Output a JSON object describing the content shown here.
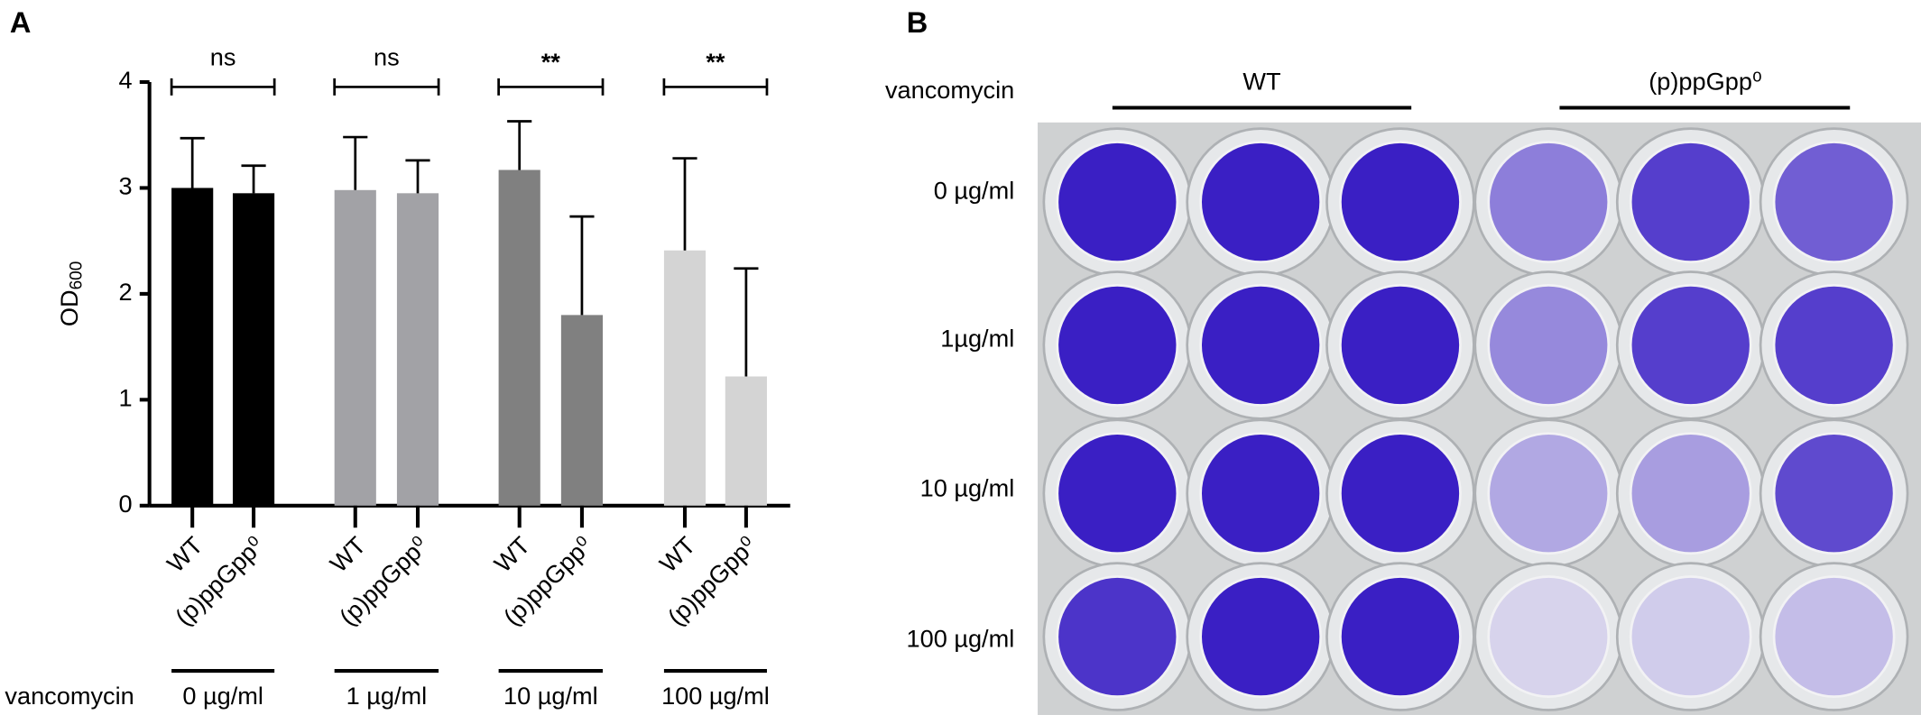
{
  "panel_a": {
    "label": "A"
  },
  "panel_b": {
    "label": "B"
  },
  "chart_data": {
    "type": "bar",
    "ylabel": "OD",
    "ylabel_sub": "600",
    "categories": [
      "WT",
      "(p)ppGpp⁰",
      "WT",
      "(p)ppGpp⁰",
      "WT",
      "(p)ppGpp⁰",
      "WT",
      "(p)ppGpp⁰"
    ],
    "values": [
      3.0,
      2.95,
      2.98,
      2.95,
      3.17,
      1.8,
      2.41,
      1.22
    ],
    "errors": [
      0.47,
      0.26,
      0.5,
      0.31,
      0.46,
      0.93,
      0.87,
      1.02
    ],
    "colors": [
      "#000000",
      "#000000",
      "#a2a2a6",
      "#a2a2a6",
      "#808080",
      "#808080",
      "#d4d4d4",
      "#d4d4d4"
    ],
    "group_title": "vancomycin",
    "groups": [
      "0 µg/ml",
      "1 µg/ml",
      "10 µg/ml",
      "100 µg/ml"
    ],
    "significance": [
      "ns",
      "ns",
      "**",
      "**"
    ],
    "ylim": [
      0,
      4
    ],
    "yticks": [
      0,
      1,
      2,
      3,
      4
    ]
  },
  "plate": {
    "row_title": "vancomycin",
    "columns": [
      "WT",
      "(p)ppGpp⁰"
    ],
    "rows": [
      "0 µg/ml",
      "1µg/ml",
      "10 µg/ml",
      "100 µg/ml"
    ]
  }
}
